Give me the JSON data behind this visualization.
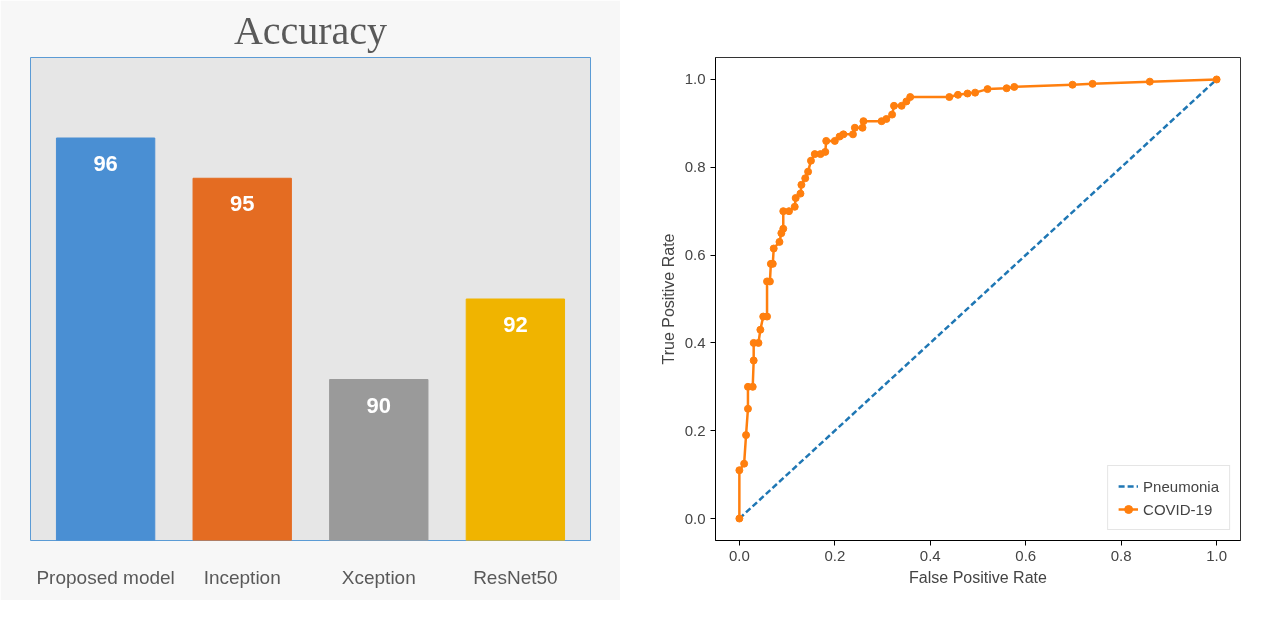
{
  "chart_data": [
    {
      "type": "bar",
      "title": "Accuracy",
      "categories": [
        "Proposed model",
        "Inception",
        "Xception",
        "ResNet50"
      ],
      "values": [
        96,
        95,
        90,
        92
      ],
      "colors": [
        "#4a8fd3",
        "#e46c22",
        "#9a9a9a",
        "#f0b400"
      ],
      "ylim": [
        86,
        98
      ],
      "data_labels": true,
      "grid": false,
      "tick_labels": "x"
    },
    {
      "type": "line",
      "xlabel": "False Positive Rate",
      "ylabel": "True Positive Rate",
      "xlim": [
        -0.05,
        1.05
      ],
      "ylim": [
        -0.05,
        1.05
      ],
      "xticks": [
        {
          "value": 0,
          "label": "0.0"
        },
        {
          "value": 0.2,
          "label": "0.2"
        },
        {
          "value": 0.4,
          "label": "0.4"
        },
        {
          "value": 0.6,
          "label": "0.6"
        },
        {
          "value": 0.8,
          "label": "0.8"
        },
        {
          "value": 1,
          "label": "1.0"
        }
      ],
      "yticks": [
        {
          "value": 0,
          "label": "0.0"
        },
        {
          "value": 0.2,
          "label": "0.2"
        },
        {
          "value": 0.4,
          "label": "0.4"
        },
        {
          "value": 0.6,
          "label": "0.6"
        },
        {
          "value": 0.8,
          "label": "0.8"
        },
        {
          "value": 1,
          "label": "1.0"
        }
      ],
      "legend": "bottom right",
      "grid": false,
      "series": [
        {
          "name": "Pneumonia",
          "color": "#1f77b4",
          "line_style": "dashed",
          "marker": "none",
          "x": [
            0,
            1
          ],
          "values": [
            0,
            1
          ]
        },
        {
          "name": "COVID-19",
          "color": "#ff7f0e",
          "line_style": "solid",
          "marker": "circle",
          "x": [
            0,
            0,
            0.01,
            0.014,
            0.018,
            0.018,
            0.028,
            0.03,
            0.03,
            0.04,
            0.044,
            0.05,
            0.058,
            0.058,
            0.064,
            0.066,
            0.07,
            0.072,
            0.084,
            0.088,
            0.092,
            0.092,
            0.104,
            0.116,
            0.118,
            0.128,
            0.13,
            0.138,
            0.144,
            0.15,
            0.158,
            0.17,
            0.18,
            0.182,
            0.2,
            0.21,
            0.218,
            0.238,
            0.242,
            0.258,
            0.26,
            0.298,
            0.308,
            0.32,
            0.324,
            0.34,
            0.35,
            0.358,
            0.44,
            0.458,
            0.478,
            0.494,
            0.52,
            0.56,
            0.576,
            0.698,
            0.74,
            0.86,
            1.0
          ],
          "values": [
            0,
            0.11,
            0.125,
            0.19,
            0.25,
            0.3,
            0.3,
            0.36,
            0.4,
            0.4,
            0.43,
            0.46,
            0.46,
            0.54,
            0.54,
            0.58,
            0.58,
            0.615,
            0.63,
            0.65,
            0.66,
            0.7,
            0.7,
            0.71,
            0.73,
            0.74,
            0.76,
            0.775,
            0.79,
            0.815,
            0.83,
            0.83,
            0.835,
            0.86,
            0.86,
            0.87,
            0.875,
            0.875,
            0.89,
            0.89,
            0.905,
            0.905,
            0.91,
            0.92,
            0.94,
            0.94,
            0.95,
            0.96,
            0.96,
            0.965,
            0.968,
            0.97,
            0.978,
            0.98,
            0.983,
            0.988,
            0.99,
            0.995,
            1.0
          ]
        }
      ]
    }
  ]
}
